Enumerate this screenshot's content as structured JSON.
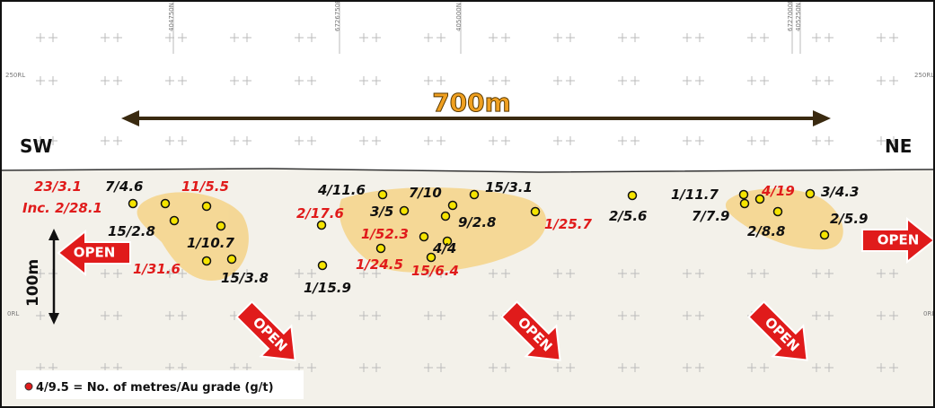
{
  "grid_labels": [
    "404750N",
    "6726750E",
    "405000N",
    "6727000E",
    "405250N"
  ],
  "level_labels": {
    "upper_left": "250RL",
    "upper_right": "250RL",
    "lower_left": "0RL",
    "lower_right": "0RL"
  },
  "scale": {
    "length": "700m",
    "height": "100m"
  },
  "directions": {
    "left": "SW",
    "right": "NE"
  },
  "intercepts": [
    "23/3.1",
    "Inc. 2/28.1",
    "7/4.6",
    "11/5.5",
    "15/2.8",
    "1/10.7",
    "1/31.6",
    "15/3.8",
    "4/11.6",
    "2/17.6",
    "7/10",
    "3/5",
    "15/3.1",
    "9/2.8",
    "1/52.3",
    "4/4",
    "1/25.7",
    "1/24.5",
    "15/6.4",
    "1/15.9",
    "2/5.6",
    "1/11.7",
    "4/19",
    "3/4.3",
    "7/7.9",
    "2/8.8",
    "2/5.9"
  ],
  "open_labels": [
    "OPEN",
    "OPEN",
    "OPEN",
    "OPEN",
    "OPEN"
  ],
  "legend": "4/9.5 = No. of metres/Au grade (g/t)"
}
